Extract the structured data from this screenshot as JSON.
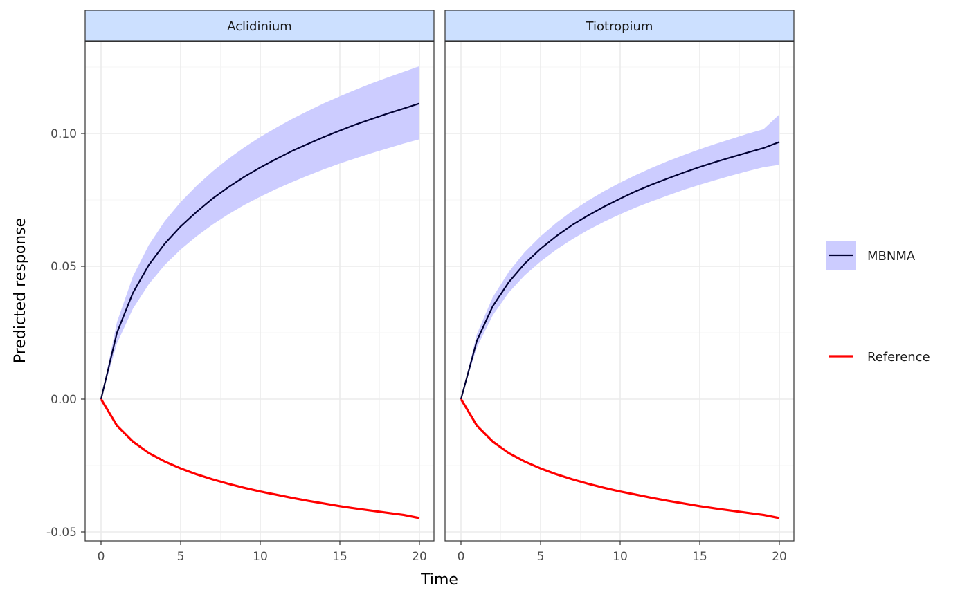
{
  "chart_data": {
    "type": "line",
    "xlabel": "Time",
    "ylabel": "Predicted response",
    "xlim": [
      -1,
      21
    ],
    "ylim": [
      -0.052,
      0.134
    ],
    "x_ticks": [
      0,
      5,
      10,
      15,
      20
    ],
    "x_tick_labels": [
      "0",
      "5",
      "10",
      "15",
      "20"
    ],
    "y_ticks": [
      -0.05,
      0,
      0.05,
      0.1
    ],
    "y_tick_labels": [
      "-0.05",
      "0.00",
      "0.05",
      "0.10"
    ],
    "grid": true,
    "legend_position": "right",
    "colors": {
      "mbnma_line": "#000033",
      "mbnma_band": "#ccccff",
      "reference_line": "#ff0000",
      "strip_fill": "#cce0ff",
      "grid_major": "#ebebeb",
      "grid_minor": "#f5f5f5"
    },
    "x": [
      0,
      1,
      2,
      3,
      4,
      5,
      6,
      7,
      8,
      9,
      10,
      11,
      12,
      13,
      14,
      15,
      16,
      17,
      18,
      19,
      20
    ],
    "legend": [
      {
        "label": "MBNMA",
        "key": "mbnma"
      },
      {
        "label": "Reference",
        "key": "reference"
      }
    ],
    "panels": [
      {
        "title": "Aclidinium",
        "series": [
          {
            "name": "MBNMA",
            "kind": "line_ribbon",
            "values": [
              0,
              0.025,
              0.04,
              0.0505,
              0.0585,
              0.065,
              0.0705,
              0.0755,
              0.0798,
              0.0837,
              0.0872,
              0.0904,
              0.0934,
              0.0961,
              0.0987,
              0.1011,
              0.1034,
              0.1055,
              0.1075,
              0.1094,
              0.1113
            ],
            "lower": [
              0,
              0.021,
              0.034,
              0.0433,
              0.0505,
              0.0563,
              0.0613,
              0.0657,
              0.0696,
              0.0731,
              0.0762,
              0.0791,
              0.0817,
              0.0842,
              0.0865,
              0.0887,
              0.0907,
              0.0926,
              0.0944,
              0.0962,
              0.0978
            ],
            "upper": [
              0,
              0.029,
              0.0462,
              0.058,
              0.067,
              0.0742,
              0.0803,
              0.0857,
              0.0905,
              0.0948,
              0.0987,
              0.1022,
              0.1055,
              0.1085,
              0.1114,
              0.114,
              0.1165,
              0.1189,
              0.1211,
              0.1232,
              0.1253
            ]
          },
          {
            "name": "Reference",
            "kind": "line",
            "values": [
              0,
              -0.01,
              -0.016,
              -0.0203,
              -0.0235,
              -0.0261,
              -0.0283,
              -0.0302,
              -0.0319,
              -0.0334,
              -0.0348,
              -0.036,
              -0.0372,
              -0.0383,
              -0.0393,
              -0.0403,
              -0.0412,
              -0.042,
              -0.0428,
              -0.0436,
              -0.0448
            ]
          }
        ]
      },
      {
        "title": "Tiotropium",
        "series": [
          {
            "name": "MBNMA",
            "kind": "line_ribbon",
            "values": [
              0,
              0.022,
              0.035,
              0.044,
              0.051,
              0.0566,
              0.0614,
              0.0656,
              0.0692,
              0.0725,
              0.0755,
              0.0783,
              0.0808,
              0.0831,
              0.0853,
              0.0874,
              0.0893,
              0.0911,
              0.0928,
              0.0945,
              0.0968
            ],
            "lower": [
              0,
              0.0195,
              0.0316,
              0.0401,
              0.0466,
              0.0518,
              0.0563,
              0.0602,
              0.0637,
              0.0668,
              0.0696,
              0.0722,
              0.0745,
              0.0767,
              0.0788,
              0.0807,
              0.0825,
              0.0842,
              0.0858,
              0.0873,
              0.0882
            ],
            "upper": [
              0,
              0.0245,
              0.0384,
              0.0479,
              0.0553,
              0.0613,
              0.0664,
              0.0709,
              0.0748,
              0.0783,
              0.0815,
              0.0844,
              0.0871,
              0.0896,
              0.0919,
              0.0941,
              0.0961,
              0.098,
              0.0999,
              0.1016,
              0.1072
            ]
          },
          {
            "name": "Reference",
            "kind": "line",
            "values": [
              0,
              -0.01,
              -0.016,
              -0.0203,
              -0.0235,
              -0.0261,
              -0.0283,
              -0.0302,
              -0.0319,
              -0.0334,
              -0.0348,
              -0.036,
              -0.0372,
              -0.0383,
              -0.0393,
              -0.0403,
              -0.0412,
              -0.042,
              -0.0428,
              -0.0436,
              -0.0448
            ]
          }
        ]
      }
    ]
  }
}
